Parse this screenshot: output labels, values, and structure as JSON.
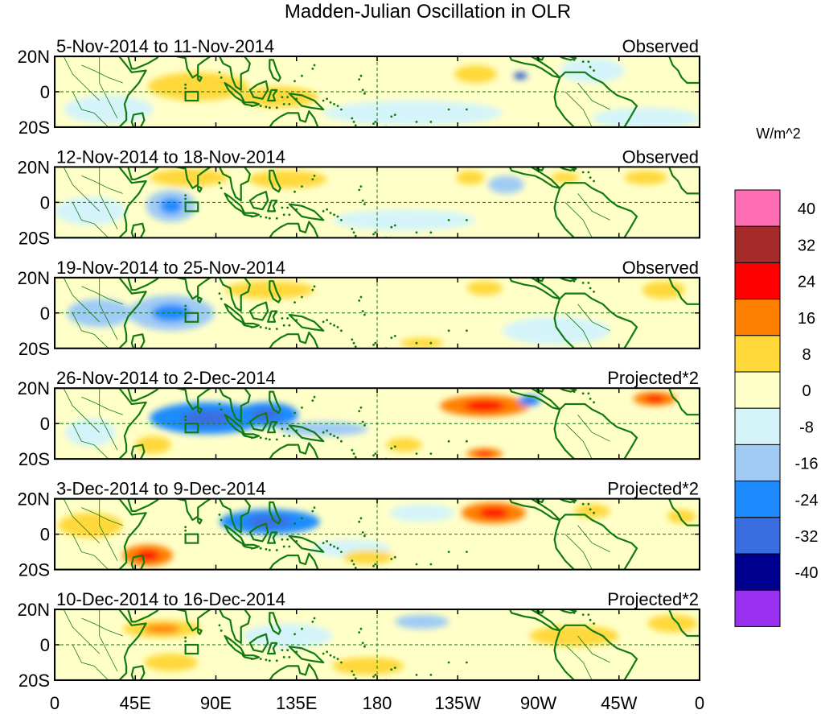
{
  "chart_data": {
    "type": "heatmap",
    "title": "Madden-Julian Oscillation in OLR",
    "units_label": "W/m^2",
    "x_ticks": [
      "0",
      "45E",
      "90E",
      "135E",
      "180",
      "135W",
      "90W",
      "45W",
      "0"
    ],
    "y_ticks": [
      "20N",
      "0",
      "20S"
    ],
    "xlim_deg_east": [
      0,
      360
    ],
    "ylim_deg": [
      -20,
      20
    ],
    "colorbar": {
      "tick_labels": [
        "40",
        "32",
        "24",
        "16",
        "8",
        "0",
        "-8",
        "-16",
        "-24",
        "-32",
        "-40"
      ],
      "colors": [
        "#ff6eb4",
        "#a52a2a",
        "#ff0000",
        "#ff7f00",
        "#ffd83a",
        "#ffffc8",
        "#d4f4fa",
        "#9fcbf5",
        "#1e8cff",
        "#3a6ee0",
        "#000090",
        "#9a30f0"
      ]
    },
    "panels": [
      {
        "date_range": "5-Nov-2014 to 11-Nov-2014",
        "label": "Observed",
        "features": [
          {
            "lon": 80,
            "lat": 3,
            "w": 28,
            "h": 8,
            "v": 10
          },
          {
            "lon": 125,
            "lat": -3,
            "w": 22,
            "h": 6,
            "v": 12
          },
          {
            "lon": 235,
            "lat": 10,
            "w": 12,
            "h": 5,
            "v": 9
          },
          {
            "lon": 260,
            "lat": 9,
            "w": 4,
            "h": 2,
            "v": -25
          },
          {
            "lon": 300,
            "lat": 12,
            "w": 18,
            "h": 7,
            "v": -7
          },
          {
            "lon": 30,
            "lat": -10,
            "w": 25,
            "h": 8,
            "v": -6
          },
          {
            "lon": 200,
            "lat": -12,
            "w": 50,
            "h": 7,
            "v": -6
          },
          {
            "lon": 330,
            "lat": -15,
            "w": 30,
            "h": 6,
            "v": -6
          }
        ]
      },
      {
        "date_range": "12-Nov-2014 to 18-Nov-2014",
        "label": "Observed",
        "features": [
          {
            "lon": 75,
            "lat": 14,
            "w": 22,
            "h": 5,
            "v": 10
          },
          {
            "lon": 130,
            "lat": 13,
            "w": 22,
            "h": 5,
            "v": 10
          },
          {
            "lon": 232,
            "lat": 14,
            "w": 8,
            "h": 4,
            "v": 9
          },
          {
            "lon": 285,
            "lat": 14,
            "w": 8,
            "h": 3,
            "v": 9
          },
          {
            "lon": 330,
            "lat": 14,
            "w": 12,
            "h": 4,
            "v": 9
          },
          {
            "lon": 65,
            "lat": -2,
            "w": 14,
            "h": 9,
            "v": -14
          },
          {
            "lon": 252,
            "lat": 10,
            "w": 10,
            "h": 5,
            "v": -9
          },
          {
            "lon": 20,
            "lat": -5,
            "w": 20,
            "h": 8,
            "v": -7
          },
          {
            "lon": 195,
            "lat": -10,
            "w": 40,
            "h": 6,
            "v": -5
          }
        ]
      },
      {
        "date_range": "19-Nov-2014 to 25-Nov-2014",
        "label": "Observed",
        "features": [
          {
            "lon": 65,
            "lat": 0,
            "w": 24,
            "h": 10,
            "v": -14
          },
          {
            "lon": 25,
            "lat": 0,
            "w": 18,
            "h": 8,
            "v": -9
          },
          {
            "lon": 120,
            "lat": 13,
            "w": 25,
            "h": 5,
            "v": 10
          },
          {
            "lon": 240,
            "lat": 14,
            "w": 10,
            "h": 4,
            "v": 10
          },
          {
            "lon": 340,
            "lat": 13,
            "w": 12,
            "h": 5,
            "v": 10
          },
          {
            "lon": 205,
            "lat": -17,
            "w": 12,
            "h": 3,
            "v": 9
          },
          {
            "lon": 280,
            "lat": -10,
            "w": 30,
            "h": 8,
            "v": -6
          }
        ]
      },
      {
        "date_range": "26-Nov-2014 to 2-Dec-2014",
        "label": "Projected*2",
        "features": [
          {
            "lon": 85,
            "lat": 3,
            "w": 32,
            "h": 9,
            "v": -24
          },
          {
            "lon": 118,
            "lat": 5,
            "w": 18,
            "h": 7,
            "v": -22
          },
          {
            "lon": 150,
            "lat": -3,
            "w": 25,
            "h": 4,
            "v": -9
          },
          {
            "lon": 240,
            "lat": 10,
            "w": 25,
            "h": 6,
            "v": 18
          },
          {
            "lon": 335,
            "lat": 14,
            "w": 12,
            "h": 4,
            "v": 18
          },
          {
            "lon": 265,
            "lat": 13,
            "w": 6,
            "h": 3,
            "v": -18
          },
          {
            "lon": 55,
            "lat": -12,
            "w": 10,
            "h": 5,
            "v": 10
          },
          {
            "lon": 195,
            "lat": -12,
            "w": 10,
            "h": 4,
            "v": 10
          },
          {
            "lon": 240,
            "lat": -17,
            "w": 10,
            "h": 3,
            "v": 16
          },
          {
            "lon": 20,
            "lat": -5,
            "w": 14,
            "h": 8,
            "v": -8
          }
        ]
      },
      {
        "date_range": "3-Dec-2014 to 9-Dec-2014",
        "label": "Projected*2",
        "features": [
          {
            "lon": 120,
            "lat": 7,
            "w": 28,
            "h": 7,
            "v": -22
          },
          {
            "lon": 165,
            "lat": -8,
            "w": 22,
            "h": 5,
            "v": -8
          },
          {
            "lon": 52,
            "lat": -12,
            "w": 14,
            "h": 6,
            "v": 16
          },
          {
            "lon": 245,
            "lat": 12,
            "w": 18,
            "h": 6,
            "v": 18
          },
          {
            "lon": 300,
            "lat": 13,
            "w": 10,
            "h": 4,
            "v": 9
          },
          {
            "lon": 350,
            "lat": 10,
            "w": 8,
            "h": 4,
            "v": 9
          },
          {
            "lon": 175,
            "lat": -13,
            "w": 14,
            "h": 4,
            "v": 10
          },
          {
            "lon": 20,
            "lat": 5,
            "w": 18,
            "h": 7,
            "v": 8
          },
          {
            "lon": 205,
            "lat": 12,
            "w": 18,
            "h": 5,
            "v": -8
          }
        ]
      },
      {
        "date_range": "10-Dec-2014 to 16-Dec-2014",
        "label": "Projected*2",
        "features": [
          {
            "lon": 60,
            "lat": 9,
            "w": 22,
            "h": 5,
            "v": 14
          },
          {
            "lon": 175,
            "lat": -12,
            "w": 20,
            "h": 5,
            "v": 12
          },
          {
            "lon": 130,
            "lat": 5,
            "w": 25,
            "h": 7,
            "v": -8
          },
          {
            "lon": 205,
            "lat": 13,
            "w": 15,
            "h": 4,
            "v": -9
          },
          {
            "lon": 290,
            "lat": 5,
            "w": 25,
            "h": 6,
            "v": 9
          },
          {
            "lon": 65,
            "lat": -10,
            "w": 15,
            "h": 5,
            "v": 9
          },
          {
            "lon": 345,
            "lat": 12,
            "w": 14,
            "h": 5,
            "v": 9
          }
        ]
      }
    ]
  }
}
